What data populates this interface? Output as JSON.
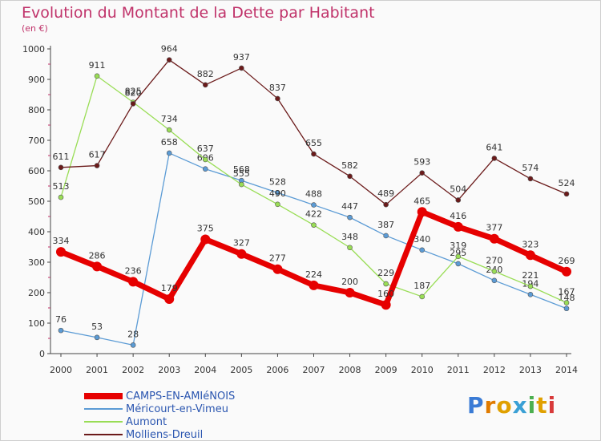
{
  "chart_data": {
    "type": "line",
    "title": "Evolution du Montant de la Dette par Habitant",
    "subtitle": "(en €)",
    "x": [
      "2000",
      "2001",
      "2002",
      "2003",
      "2004",
      "2005",
      "2006",
      "2007",
      "2008",
      "2009",
      "2010",
      "2011",
      "2012",
      "2013",
      "2014"
    ],
    "y_ticks": [
      "0",
      "100",
      "200",
      "300",
      "400",
      "500",
      "600",
      "700",
      "800",
      "900",
      "1000"
    ],
    "ylim": [
      0,
      1000
    ],
    "grid": false,
    "legend_position": "bottom-left",
    "series": [
      {
        "name": "CAMPS-EN-AMIéNOIS",
        "color": "#e60000",
        "values": [
          334,
          286,
          236,
          179,
          375,
          327,
          277,
          224,
          200,
          160,
          465,
          416,
          377,
          323,
          269
        ],
        "labels": [
          "334",
          "286",
          "236",
          "179",
          "375",
          "327",
          "277",
          "224",
          "200",
          "160",
          "465",
          "416",
          "377",
          "323",
          "269"
        ]
      },
      {
        "name": "Méricourt-en-Vimeu",
        "color": "#5b9bd5",
        "values": [
          76,
          53,
          28,
          658,
          606,
          568,
          528,
          488,
          447,
          387,
          340,
          295,
          240,
          194,
          148
        ],
        "labels": [
          "76",
          "53",
          "28",
          "658",
          "606",
          "568",
          "528",
          "488",
          "447",
          "387",
          "340",
          "295",
          "240",
          "194",
          "148"
        ]
      },
      {
        "name": "Aumont",
        "color": "#99dd55",
        "values": [
          513,
          911,
          825,
          734,
          637,
          555,
          490,
          422,
          348,
          229,
          187,
          319,
          270,
          221,
          167
        ],
        "labels": [
          "513",
          "911",
          "825",
          "734",
          "637",
          "555",
          "490",
          "422",
          "348",
          "229",
          "187",
          "319",
          "270",
          "221",
          "167"
        ]
      },
      {
        "name": "Molliens-Dreuil",
        "color": "#6b1a1a",
        "values": [
          611,
          617,
          820,
          964,
          882,
          937,
          837,
          655,
          582,
          489,
          593,
          504,
          641,
          574,
          524
        ],
        "labels": [
          "611",
          "617",
          "820",
          "964",
          "882",
          "937",
          "837",
          "655",
          "582",
          "489",
          "593",
          "504",
          "641",
          "574",
          "524"
        ]
      }
    ]
  },
  "logo": {
    "text": "Proxiti"
  }
}
